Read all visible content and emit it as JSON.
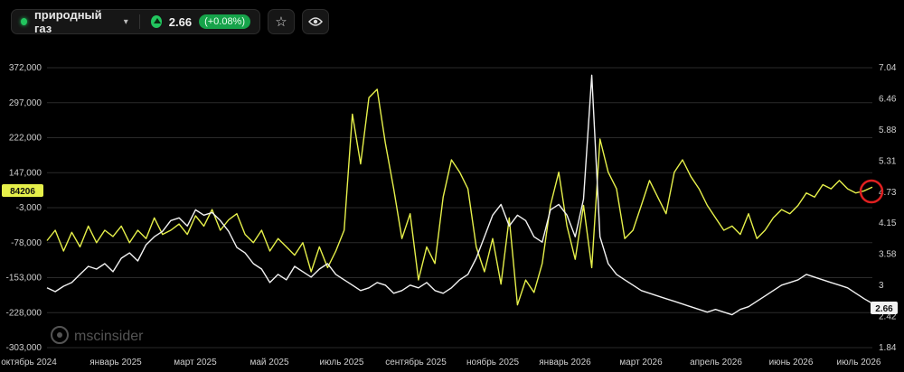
{
  "toolbar": {
    "instrument": "природный газ",
    "price": "2.66",
    "change": "(+0.08%)",
    "icons": [
      "chevron-down-icon",
      "arrow-up-icon",
      "star-icon",
      "eye-icon"
    ]
  },
  "watermark": "mscinsider",
  "colors": {
    "yellow_series": "#e6f04a",
    "white_series": "#f2f2f2",
    "accent_green": "#22c55e",
    "marker_red": "#e02020"
  },
  "chart_data": {
    "type": "line",
    "x_ticks": [
      "октябрь 2024",
      "январь 2025",
      "март 2025",
      "май 2025",
      "июль 2025",
      "сентябрь 2025",
      "ноябрь 2025",
      "январь 2026",
      "март 2026",
      "апрель 2026",
      "июнь 2026",
      "июль 2026"
    ],
    "left_axis": {
      "ticks": [
        "372,000",
        "297,000",
        "222,000",
        "147,000",
        "-3,000",
        "-78,000",
        "-153,000",
        "-228,000",
        "-303,000"
      ],
      "range": [
        -303000,
        372000
      ],
      "current_label": "84206"
    },
    "right_axis": {
      "ticks": [
        "7.04",
        "6.46",
        "5.88",
        "5.31",
        "4.73",
        "4.15",
        "3.58",
        "3",
        "2.42",
        "1.84"
      ],
      "range": [
        1.84,
        7.04
      ],
      "current_label": "2.66"
    },
    "series": [
      {
        "axis": "left",
        "color": "#e6f04a",
        "x": [
          0,
          0.01,
          0.02,
          0.03,
          0.04,
          0.05,
          0.06,
          0.07,
          0.08,
          0.09,
          0.1,
          0.11,
          0.12,
          0.13,
          0.14,
          0.15,
          0.16,
          0.17,
          0.18,
          0.19,
          0.2,
          0.21,
          0.22,
          0.23,
          0.24,
          0.25,
          0.26,
          0.27,
          0.28,
          0.29,
          0.3,
          0.31,
          0.32,
          0.33,
          0.34,
          0.35,
          0.36,
          0.37,
          0.38,
          0.39,
          0.4,
          0.41,
          0.42,
          0.43,
          0.44,
          0.45,
          0.46,
          0.47,
          0.48,
          0.49,
          0.5,
          0.51,
          0.52,
          0.53,
          0.54,
          0.55,
          0.56,
          0.57,
          0.58,
          0.59,
          0.6,
          0.61,
          0.62,
          0.63,
          0.64,
          0.65,
          0.66,
          0.67,
          0.68,
          0.69,
          0.7,
          0.71,
          0.72,
          0.73,
          0.74,
          0.75,
          0.76,
          0.77,
          0.78,
          0.79,
          0.8,
          0.81,
          0.82,
          0.83,
          0.84,
          0.85,
          0.86,
          0.87,
          0.88,
          0.89,
          0.9,
          0.91,
          0.92,
          0.93,
          0.94,
          0.95,
          0.96,
          0.97,
          0.98,
          0.99,
          1.0
        ],
        "y": [
          -45000,
          -20000,
          -70000,
          -25000,
          -60000,
          -10000,
          -50000,
          -20000,
          -35000,
          -10000,
          -50000,
          -20000,
          -40000,
          10000,
          -30000,
          -20000,
          -5000,
          -30000,
          15000,
          -10000,
          30000,
          -20000,
          5000,
          20000,
          -30000,
          -50000,
          -20000,
          -70000,
          -40000,
          -60000,
          -80000,
          -50000,
          -120000,
          -60000,
          -110000,
          -70000,
          -20000,
          260000,
          140000,
          300000,
          320000,
          190000,
          80000,
          -40000,
          20000,
          -140000,
          -60000,
          -100000,
          60000,
          150000,
          120000,
          80000,
          -60000,
          -120000,
          -40000,
          -150000,
          10000,
          -200000,
          -140000,
          -170000,
          -100000,
          40000,
          120000,
          -10000,
          -90000,
          40000,
          -110000,
          200000,
          120000,
          80000,
          -40000,
          -20000,
          40000,
          100000,
          60000,
          20000,
          120000,
          150000,
          110000,
          80000,
          40000,
          10000,
          -20000,
          -10000,
          -30000,
          20000,
          -40000,
          -20000,
          10000,
          30000,
          20000,
          40000,
          70000,
          60000,
          90000,
          80000,
          100000,
          80000,
          70000,
          75000,
          84206
        ]
      },
      {
        "axis": "right",
        "color": "#f2f2f2",
        "x": [
          0,
          0.01,
          0.02,
          0.03,
          0.04,
          0.05,
          0.06,
          0.07,
          0.08,
          0.09,
          0.1,
          0.11,
          0.12,
          0.13,
          0.14,
          0.15,
          0.16,
          0.17,
          0.18,
          0.19,
          0.2,
          0.21,
          0.22,
          0.23,
          0.24,
          0.25,
          0.26,
          0.27,
          0.28,
          0.29,
          0.3,
          0.31,
          0.32,
          0.33,
          0.34,
          0.35,
          0.36,
          0.37,
          0.38,
          0.39,
          0.4,
          0.41,
          0.42,
          0.43,
          0.44,
          0.45,
          0.46,
          0.47,
          0.48,
          0.49,
          0.5,
          0.51,
          0.52,
          0.53,
          0.54,
          0.55,
          0.56,
          0.57,
          0.58,
          0.59,
          0.6,
          0.61,
          0.62,
          0.63,
          0.64,
          0.65,
          0.66,
          0.67,
          0.68,
          0.69,
          0.7,
          0.71,
          0.72,
          0.73,
          0.74,
          0.75,
          0.76,
          0.77,
          0.78,
          0.79,
          0.8,
          0.81,
          0.82,
          0.83,
          0.84,
          0.85,
          0.86,
          0.87,
          0.88,
          0.89,
          0.9,
          0.91,
          0.92,
          0.93,
          0.94,
          0.95,
          0.96,
          0.97,
          0.98,
          0.99,
          1.0
        ],
        "y": [
          2.95,
          2.88,
          2.98,
          3.05,
          3.2,
          3.35,
          3.3,
          3.4,
          3.25,
          3.5,
          3.6,
          3.45,
          3.75,
          3.9,
          4.0,
          4.2,
          4.25,
          4.1,
          4.4,
          4.3,
          4.35,
          4.2,
          4.0,
          3.7,
          3.6,
          3.4,
          3.3,
          3.05,
          3.2,
          3.1,
          3.35,
          3.25,
          3.15,
          3.3,
          3.4,
          3.2,
          3.1,
          3.0,
          2.9,
          2.95,
          3.05,
          3.0,
          2.85,
          2.9,
          3.0,
          2.95,
          3.05,
          2.9,
          2.85,
          2.95,
          3.1,
          3.2,
          3.5,
          3.9,
          4.3,
          4.5,
          4.1,
          4.3,
          4.2,
          3.9,
          3.8,
          4.4,
          4.5,
          4.3,
          3.9,
          4.6,
          6.9,
          3.9,
          3.4,
          3.2,
          3.1,
          3.0,
          2.9,
          2.85,
          2.8,
          2.75,
          2.7,
          2.65,
          2.6,
          2.55,
          2.5,
          2.55,
          2.5,
          2.45,
          2.55,
          2.6,
          2.7,
          2.8,
          2.9,
          3.0,
          3.05,
          3.1,
          3.2,
          3.15,
          3.1,
          3.05,
          3.0,
          2.95,
          2.85,
          2.75,
          2.66
        ]
      }
    ],
    "grid": true,
    "watermark": "mscinsider"
  }
}
